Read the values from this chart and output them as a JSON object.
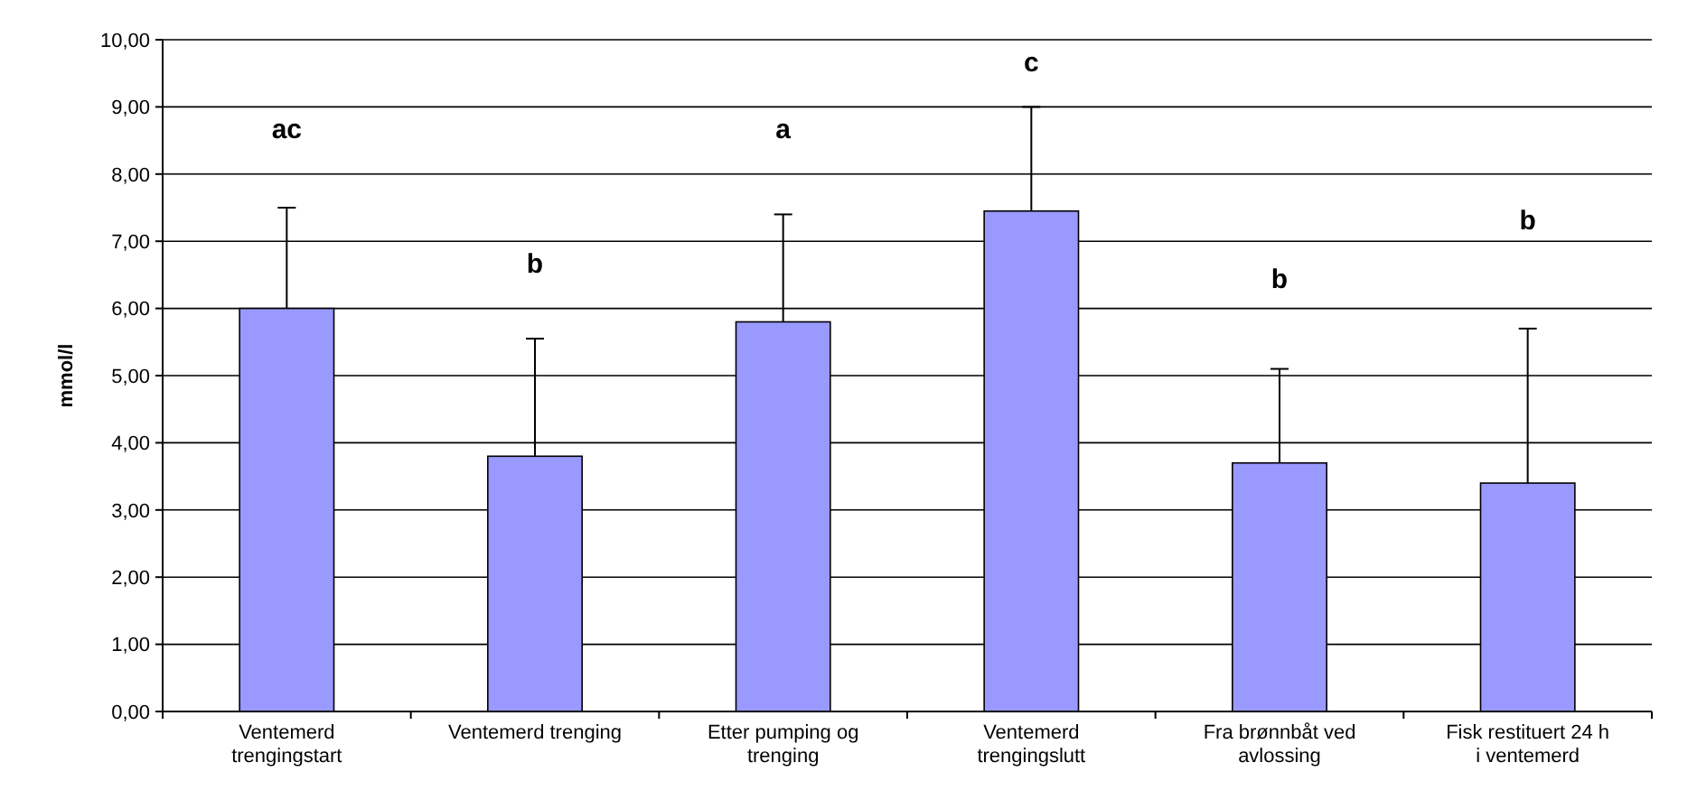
{
  "chart_data": {
    "type": "bar",
    "ylabel": "mmol/l",
    "categories": [
      "Ventemerd trengingstart",
      "Ventemerd trenging",
      "Etter pumping og trenging",
      "Ventemerd trengingslutt",
      "Fra brønnbåt ved avlossing",
      "Fisk restituert 24 h i ventemerd"
    ],
    "values": [
      6.0,
      3.8,
      5.8,
      7.45,
      3.7,
      3.4
    ],
    "errors": [
      [
        6.0,
        7.5
      ],
      [
        3.8,
        5.55
      ],
      [
        5.8,
        7.4
      ],
      [
        7.45,
        9.0
      ],
      [
        3.7,
        5.1
      ],
      [
        3.4,
        5.7
      ]
    ],
    "color": "#9999ff",
    "ylim": [
      0,
      10
    ],
    "yticks": [
      {
        "value": 0,
        "label": "0,00"
      },
      {
        "value": 1,
        "label": "1,00"
      },
      {
        "value": 2,
        "label": "2,00"
      },
      {
        "value": 3,
        "label": "3,00"
      },
      {
        "value": 4,
        "label": "4,00"
      },
      {
        "value": 5,
        "label": "5,00"
      },
      {
        "value": 6,
        "label": "6,00"
      },
      {
        "value": 7,
        "label": "7,00"
      },
      {
        "value": 8,
        "label": "8,00"
      },
      {
        "value": 9,
        "label": "9,00"
      },
      {
        "value": 10,
        "label": "10,00"
      }
    ],
    "grid": "y",
    "annotations": [
      "ac",
      "b",
      "a",
      "c",
      "b",
      "b"
    ]
  }
}
